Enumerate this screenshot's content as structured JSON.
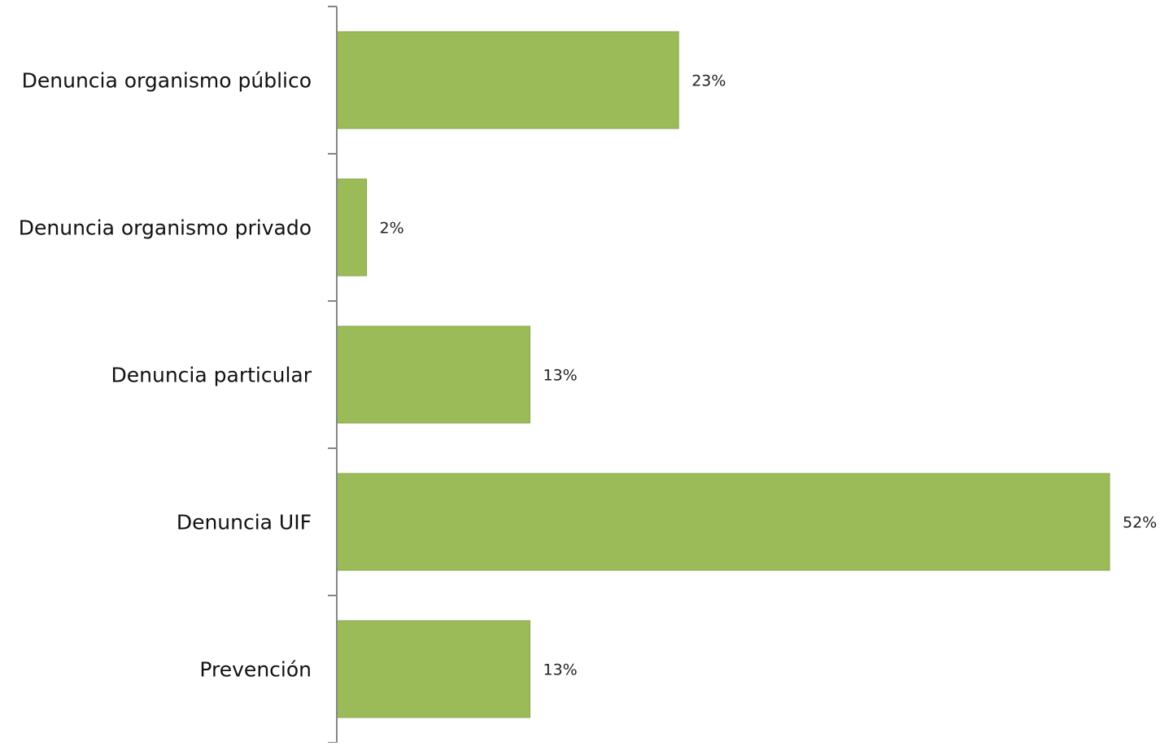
{
  "chart_data": {
    "type": "bar",
    "orientation": "horizontal",
    "categories": [
      "Denuncia organismo público",
      "Denuncia organismo privado",
      "Denuncia particular",
      "Denuncia UIF",
      "Prevención"
    ],
    "values": [
      23,
      2,
      13,
      52,
      13
    ],
    "data_labels": [
      "23%",
      "2%",
      "13%",
      "52%",
      "13%"
    ],
    "value_unit": "%",
    "xlim": [
      0,
      52
    ],
    "bar_color": "#9BBB59",
    "axis_color": "#868686",
    "grid": false,
    "legend": "none",
    "title": ""
  }
}
